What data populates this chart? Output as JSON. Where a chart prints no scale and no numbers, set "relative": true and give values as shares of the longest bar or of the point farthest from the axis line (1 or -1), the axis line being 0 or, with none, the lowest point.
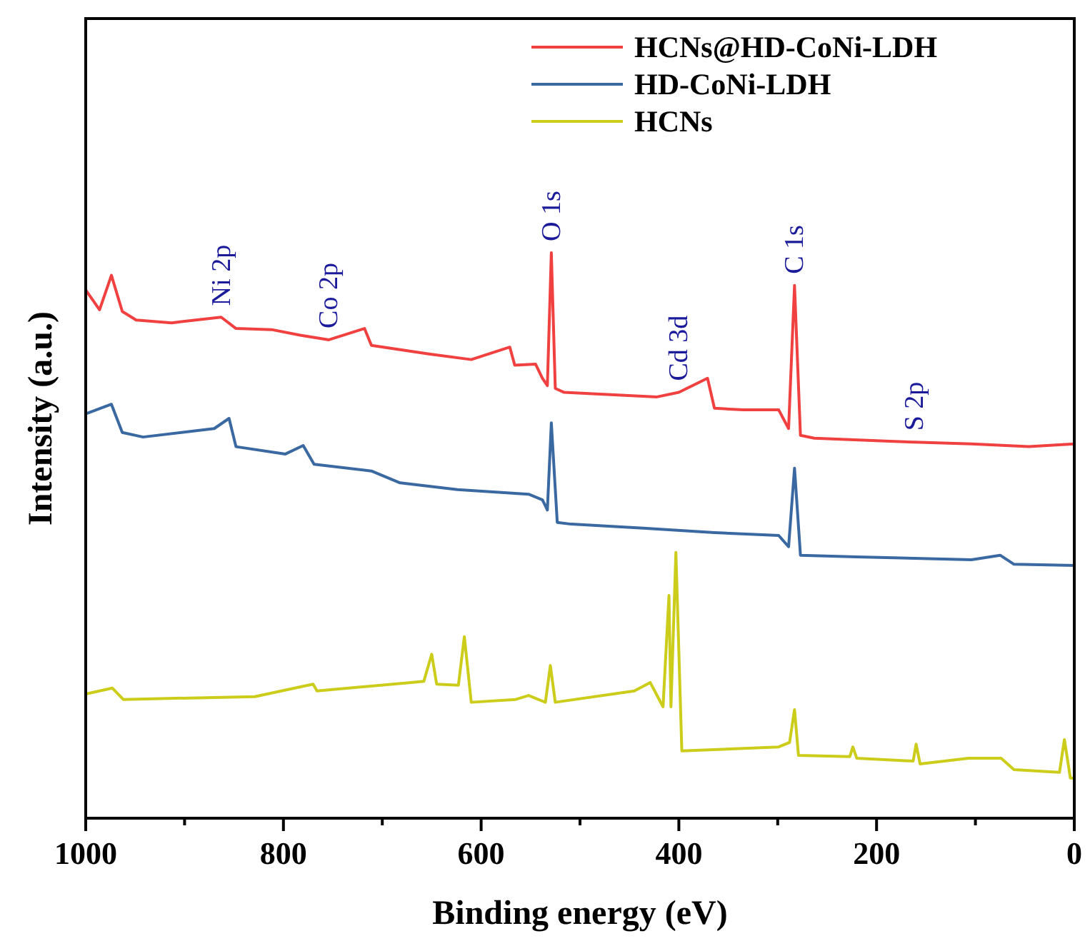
{
  "chart_data": {
    "type": "line",
    "relative": true,
    "xlabel": "Binding energy (eV)",
    "ylabel": "Intensity (a.u.)",
    "xlim": [
      1000,
      0
    ],
    "xticks": [
      1000,
      {
        "value": 900,
        "label": null
      },
      800,
      {
        "value": 700,
        "label": null
      },
      600,
      {
        "value": 500,
        "label": null
      },
      400,
      {
        "value": 300,
        "label": null
      },
      200,
      {
        "value": 100,
        "label": null
      },
      0
    ],
    "legend": "top right",
    "grid": false,
    "series": [
      {
        "name": "HCNs@HD-CoNi-LDH",
        "color": "#f04040",
        "x": [
          1000,
          986,
          974,
          963,
          949,
          913,
          863,
          848,
          812,
          783,
          754,
          718,
          711,
          653,
          610,
          571,
          566,
          545,
          538,
          533,
          529,
          525,
          516,
          480,
          422,
          400,
          371,
          364,
          335,
          299,
          289,
          283,
          277,
          263,
          191,
          162,
          104,
          46,
          0
        ],
        "values": [
          0.934,
          0.899,
          0.96,
          0.896,
          0.881,
          0.876,
          0.886,
          0.866,
          0.864,
          0.854,
          0.846,
          0.866,
          0.836,
          0.821,
          0.811,
          0.833,
          0.801,
          0.803,
          0.778,
          0.765,
          1.0,
          0.76,
          0.753,
          0.75,
          0.745,
          0.753,
          0.778,
          0.725,
          0.722,
          0.722,
          0.689,
          0.942,
          0.677,
          0.672,
          0.667,
          0.665,
          0.662,
          0.657,
          0.662
        ]
      },
      {
        "name": "HD-CoNi-LDH",
        "color": "#3a68a0",
        "x": [
          1000,
          974,
          963,
          942,
          870,
          855,
          848,
          798,
          780,
          769,
          711,
          682,
          624,
          552,
          538,
          533,
          529,
          523,
          509,
          436,
          364,
          299,
          289,
          283,
          277,
          220,
          104,
          75,
          61,
          0
        ],
        "values": [
          0.715,
          0.732,
          0.682,
          0.674,
          0.689,
          0.707,
          0.657,
          0.644,
          0.659,
          0.626,
          0.614,
          0.593,
          0.581,
          0.573,
          0.563,
          0.545,
          0.699,
          0.523,
          0.52,
          0.513,
          0.505,
          0.5,
          0.48,
          0.619,
          0.465,
          0.462,
          0.457,
          0.465,
          0.449,
          0.447
        ]
      },
      {
        "name": "HCNs",
        "color": "#cccc1a",
        "x": [
          999,
          973,
          962,
          829,
          770,
          766,
          671,
          658,
          650,
          645,
          623,
          617,
          610,
          565,
          552,
          535,
          530,
          525,
          445,
          429,
          416,
          410,
          408,
          403,
          397,
          299,
          288,
          283,
          279,
          227,
          224,
          220,
          163,
          160,
          156,
          107,
          74,
          61,
          15,
          10,
          4,
          1
        ],
        "values": [
          0.22,
          0.23,
          0.21,
          0.215,
          0.237,
          0.225,
          0.24,
          0.242,
          0.29,
          0.237,
          0.235,
          0.321,
          0.205,
          0.21,
          0.217,
          0.205,
          0.27,
          0.205,
          0.225,
          0.24,
          0.197,
          0.394,
          0.197,
          0.47,
          0.119,
          0.126,
          0.134,
          0.192,
          0.111,
          0.109,
          0.126,
          0.106,
          0.101,
          0.131,
          0.096,
          0.106,
          0.106,
          0.086,
          0.081,
          0.139,
          0.071,
          0.071
        ]
      }
    ],
    "annotations": [
      {
        "text": "Ni 2p",
        "x": 863,
        "y": 0.886
      },
      {
        "text": "Co 2p",
        "x": 754,
        "y": 0.846
      },
      {
        "text": "O 1s",
        "x": 529,
        "y": 1.0
      },
      {
        "text": "Cd 3d",
        "x": 400,
        "y": 0.753
      },
      {
        "text": "C 1s",
        "x": 283,
        "y": 0.942
      },
      {
        "text": "S 2p",
        "x": 162,
        "y": 0.665
      }
    ]
  }
}
